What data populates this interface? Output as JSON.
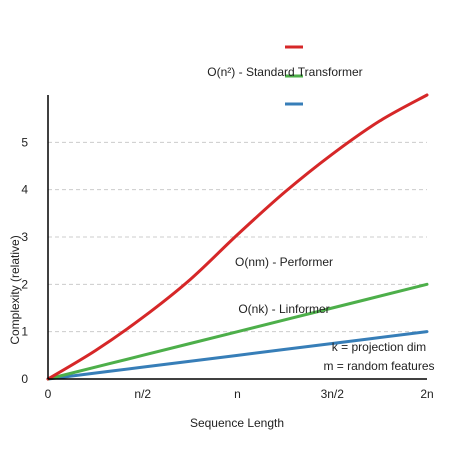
{
  "chart_data": {
    "type": "line",
    "xlabel": "Sequence Length",
    "ylabel": "Complexity (relative)",
    "x_ticks": [
      {
        "value": 0,
        "label": "0"
      },
      {
        "value": 0.5,
        "label": "n/2"
      },
      {
        "value": 1,
        "label": "n"
      },
      {
        "value": 1.5,
        "label": "3n/2"
      },
      {
        "value": 2,
        "label": "2n"
      }
    ],
    "y_ticks": [
      0,
      1,
      2,
      3,
      4,
      5
    ],
    "xlim": [
      0,
      2
    ],
    "ylim": [
      0,
      6
    ],
    "grid": "horizontal dashed",
    "legend": "top-right",
    "series": [
      {
        "name": "O(n²) - Standard Transformer",
        "color": "#d62728",
        "x": [
          0,
          0.25,
          0.5,
          0.75,
          1.0,
          1.25,
          1.5,
          1.75,
          2.0
        ],
        "values": [
          0,
          0.6,
          1.3,
          2.1,
          3.05,
          3.95,
          4.75,
          5.45,
          6.0
        ]
      },
      {
        "name": "O(nk) - Linformer",
        "color": "#4daf4a",
        "x": [
          0,
          0.5,
          1.0,
          1.5,
          2.0
        ],
        "values": [
          0,
          0.5,
          1.0,
          1.5,
          2.0
        ]
      },
      {
        "name": "O(nm) - Performer",
        "color": "#377eb8",
        "x": [
          0,
          0.5,
          1.0,
          1.5,
          2.0
        ],
        "values": [
          0,
          0.25,
          0.5,
          0.75,
          1.0
        ]
      }
    ],
    "annotations": [
      {
        "text": "O(nm) - Performer"
      },
      {
        "text": "O(nk) - Linformer"
      }
    ],
    "notes": [
      "k = projection dim",
      "m = random features"
    ]
  }
}
